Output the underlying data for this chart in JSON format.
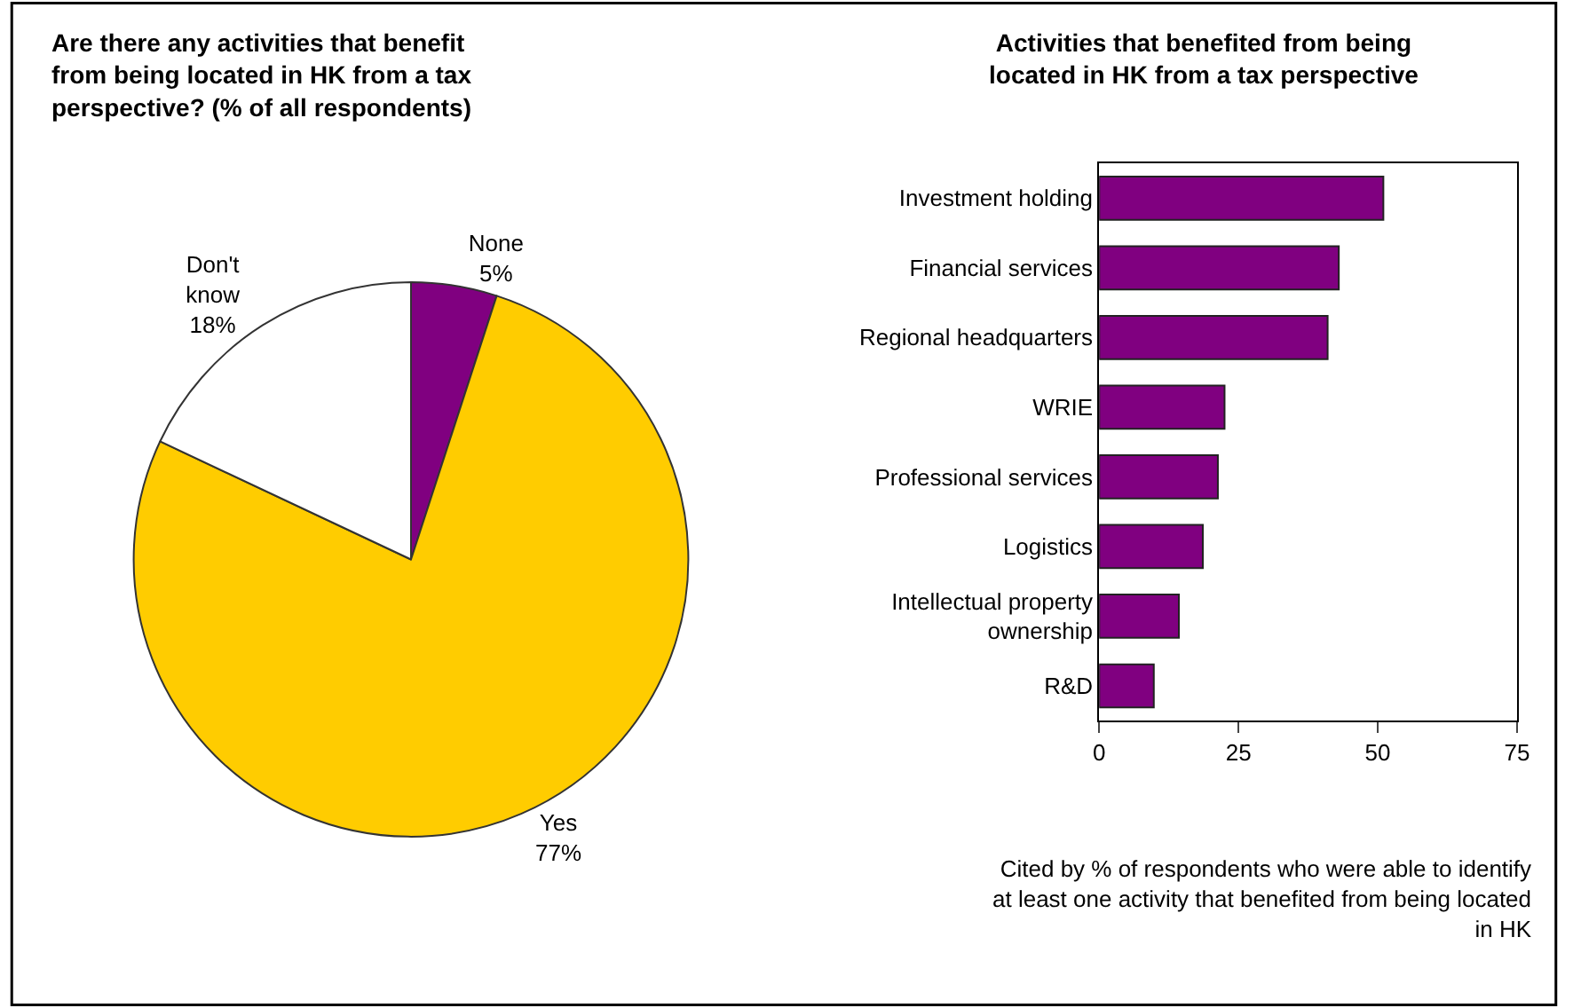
{
  "chart_data": [
    {
      "type": "pie",
      "title": "Are there any activities that benefit\nfrom being located in HK from a tax\nperspective? (% of all respondents)",
      "categories": [
        "None",
        "Yes",
        "Don't\nknow"
      ],
      "values": [
        5,
        77,
        18
      ],
      "colors": [
        "#800080",
        "#ffcc00",
        "#ffffff"
      ],
      "value_labels": [
        "5%",
        "77%",
        "18%"
      ]
    },
    {
      "type": "bar",
      "orientation": "horizontal",
      "title": "Activities that benefited from being\nlocated in HK from a tax perspective",
      "categories": [
        "Investment holding",
        "Financial services",
        "Regional headquarters",
        "WRIE",
        "Professional services",
        "Logistics",
        "Intellectual property\nownership",
        "R&D"
      ],
      "values": [
        51,
        43,
        41,
        22.5,
        21.3,
        18.6,
        14.3,
        9.8
      ],
      "color": "#800080",
      "xlim": [
        0,
        75
      ],
      "xticks": [
        0,
        25,
        50,
        75
      ],
      "annotations": [
        "Cited by % of respondents who were able to identify\nat least one activity that benefited from being located\nin HK"
      ]
    }
  ]
}
